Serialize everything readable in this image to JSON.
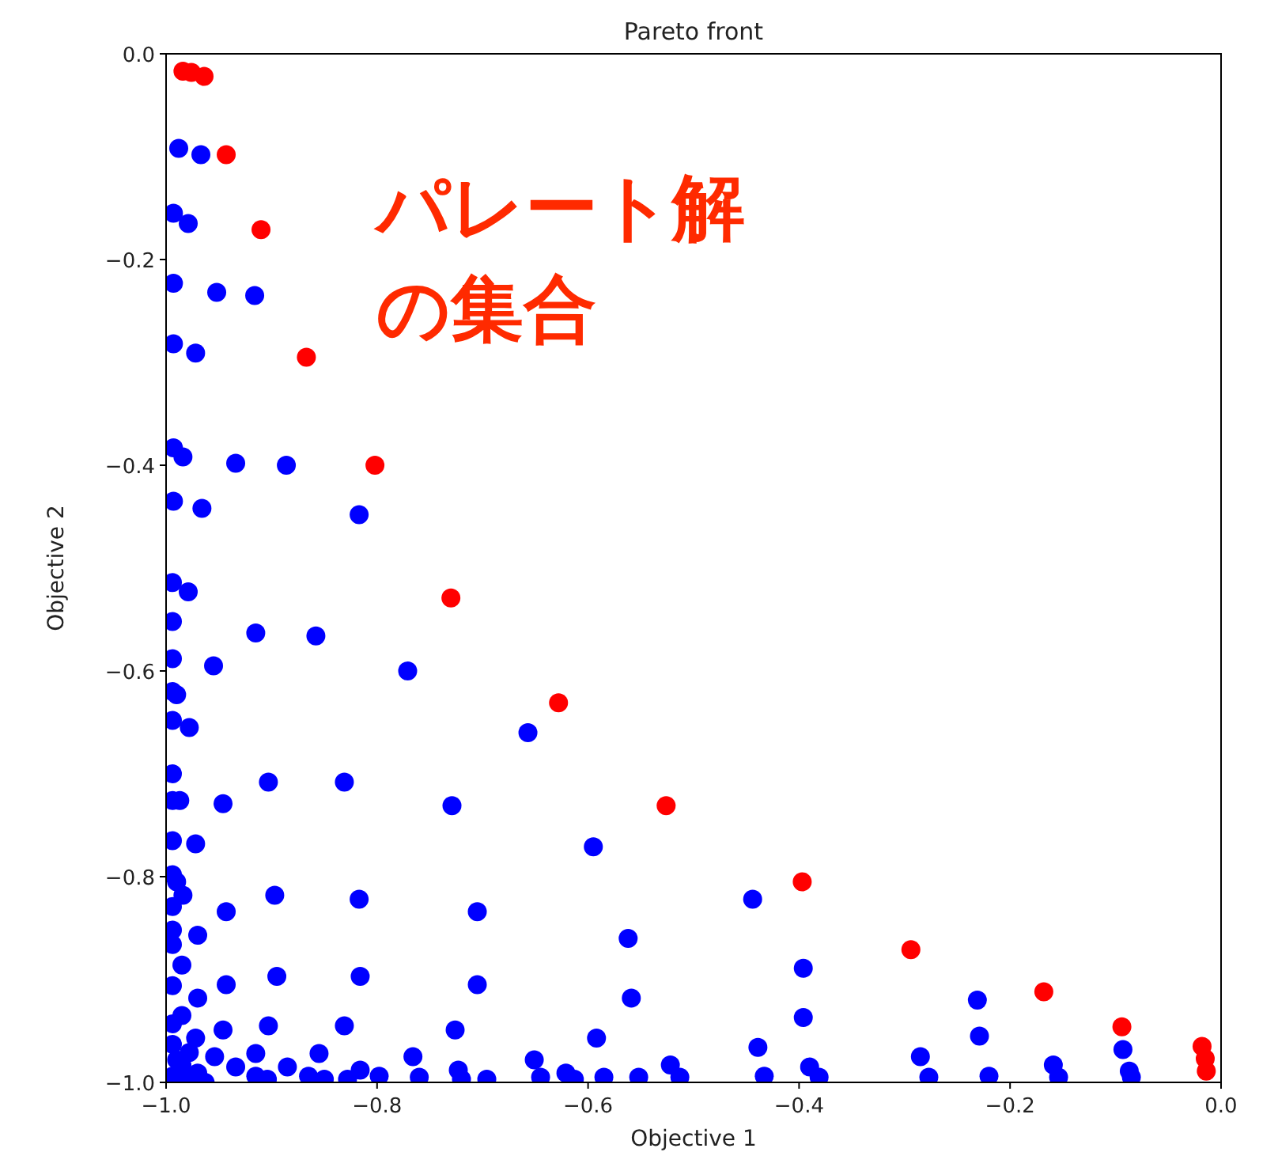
{
  "chart_data": {
    "type": "scatter",
    "title": "Pareto front",
    "xlabel": "Objective 1",
    "ylabel": "Objective 2",
    "xlim": [
      -1.0,
      0.0
    ],
    "ylim": [
      -1.0,
      0.0
    ],
    "xticks": [
      {
        "value": -1.0,
        "label": "−1.0"
      },
      {
        "value": -0.8,
        "label": "−0.8"
      },
      {
        "value": -0.6,
        "label": "−0.6"
      },
      {
        "value": -0.4,
        "label": "−0.4"
      },
      {
        "value": -0.2,
        "label": "−0.2"
      },
      {
        "value": 0.0,
        "label": "0.0"
      }
    ],
    "yticks": [
      {
        "value": -1.0,
        "label": "−1.0"
      },
      {
        "value": -0.8,
        "label": "−0.8"
      },
      {
        "value": -0.6,
        "label": "−0.6"
      },
      {
        "value": -0.4,
        "label": "−0.4"
      },
      {
        "value": -0.2,
        "label": "−0.2"
      },
      {
        "value": 0.0,
        "label": "0.0"
      }
    ],
    "marker": "circle",
    "grid": false,
    "annotations": [
      "パレート解",
      "の集合"
    ],
    "series": [
      {
        "color": "#0000ff",
        "x": [
          -0.988,
          -0.967,
          -0.993,
          -0.979,
          -0.993,
          -0.952,
          -0.916,
          -0.993,
          -0.972,
          -0.993,
          -0.984,
          -0.934,
          -0.886,
          -0.993,
          -0.966,
          -0.817,
          -0.994,
          -0.979,
          -0.994,
          -0.915,
          -0.858,
          -0.994,
          -0.955,
          -0.771,
          -0.994,
          -0.99,
          -0.994,
          -0.978,
          -0.657,
          -0.994,
          -0.903,
          -0.831,
          -0.994,
          -0.987,
          -0.946,
          -0.729,
          -0.994,
          -0.972,
          -0.595,
          -0.994,
          -0.99,
          -0.984,
          -0.897,
          -0.817,
          -0.444,
          -0.994,
          -0.943,
          -0.705,
          -0.994,
          -0.97,
          -0.562,
          -0.994,
          -0.985,
          -0.396,
          -0.895,
          -0.816,
          -0.943,
          -0.705,
          -0.994,
          -0.97,
          -0.559,
          -0.231,
          -0.985,
          -0.396,
          -0.994,
          -0.903,
          -0.831,
          -0.946,
          -0.726,
          -0.229,
          -0.972,
          -0.592,
          -0.994,
          -0.093,
          -0.915,
          -0.855,
          -0.439,
          -0.954,
          -0.766,
          -0.285,
          -0.651,
          -0.522,
          -0.159,
          -0.985,
          -0.934,
          -0.885,
          -0.816,
          -0.723,
          -0.39,
          -0.087,
          -0.621,
          -0.915,
          -0.865,
          -0.798,
          -0.433,
          -0.22,
          -0.76,
          -0.645,
          -0.585,
          -0.552,
          -0.513,
          -0.381,
          -0.277,
          -0.154,
          -0.085,
          -0.904,
          -0.85,
          -0.828,
          -0.72,
          -0.696,
          -0.613,
          -0.994,
          -0.981,
          -0.97,
          -0.963,
          -0.99,
          -0.978
        ],
        "values": [
          -0.092,
          -0.098,
          -0.155,
          -0.165,
          -0.223,
          -0.232,
          -0.235,
          -0.282,
          -0.291,
          -0.383,
          -0.392,
          -0.398,
          -0.4,
          -0.435,
          -0.442,
          -0.448,
          -0.514,
          -0.523,
          -0.552,
          -0.563,
          -0.566,
          -0.588,
          -0.595,
          -0.6,
          -0.62,
          -0.623,
          -0.648,
          -0.655,
          -0.66,
          -0.7,
          -0.708,
          -0.708,
          -0.726,
          -0.726,
          -0.729,
          -0.731,
          -0.765,
          -0.768,
          -0.771,
          -0.798,
          -0.805,
          -0.818,
          -0.818,
          -0.822,
          -0.822,
          -0.829,
          -0.834,
          -0.834,
          -0.852,
          -0.857,
          -0.86,
          -0.866,
          -0.886,
          -0.889,
          -0.897,
          -0.897,
          -0.905,
          -0.905,
          -0.906,
          -0.918,
          -0.918,
          -0.92,
          -0.935,
          -0.937,
          -0.943,
          -0.945,
          -0.945,
          -0.949,
          -0.949,
          -0.955,
          -0.957,
          -0.957,
          -0.963,
          -0.968,
          -0.972,
          -0.972,
          -0.966,
          -0.975,
          -0.975,
          -0.975,
          -0.978,
          -0.983,
          -0.983,
          -0.983,
          -0.985,
          -0.985,
          -0.988,
          -0.988,
          -0.985,
          -0.989,
          -0.991,
          -0.994,
          -0.994,
          -0.994,
          -0.994,
          -0.994,
          -0.995,
          -0.995,
          -0.995,
          -0.995,
          -0.995,
          -0.995,
          -0.995,
          -0.995,
          -0.995,
          -0.997,
          -0.997,
          -0.997,
          -0.997,
          -0.997,
          -0.997,
          -0.994,
          -0.997,
          -0.991,
          -1.0,
          -0.978,
          -0.971
        ]
      },
      {
        "color": "#ff0000",
        "x": [
          -0.984,
          -0.976,
          -0.964,
          -0.943,
          -0.91,
          -0.867,
          -0.802,
          -0.73,
          -0.628,
          -0.526,
          -0.397,
          -0.294,
          -0.168,
          -0.094,
          -0.018,
          -0.015,
          -0.014
        ],
        "values": [
          -0.017,
          -0.018,
          -0.022,
          -0.098,
          -0.171,
          -0.295,
          -0.4,
          -0.529,
          -0.631,
          -0.731,
          -0.805,
          -0.871,
          -0.912,
          -0.946,
          -0.965,
          -0.977,
          -0.989
        ]
      }
    ]
  }
}
